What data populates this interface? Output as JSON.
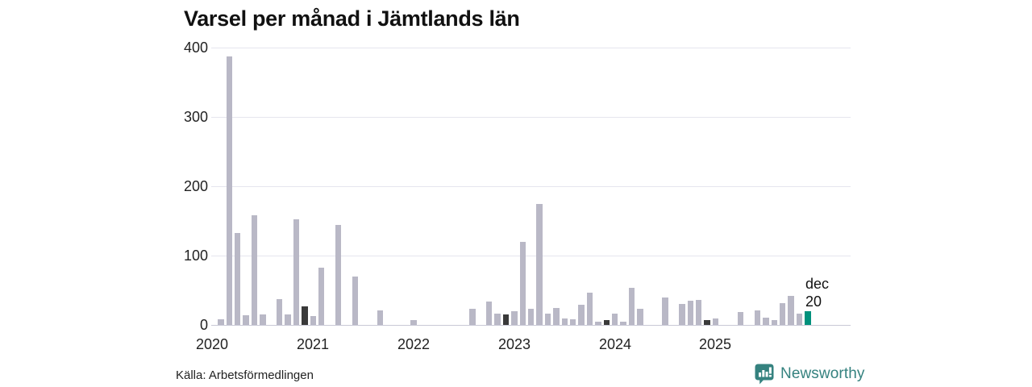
{
  "title": "Varsel per månad i Jämtlands län",
  "source": "Källa: Arbetsförmedlingen",
  "branding": {
    "name": "Newsworthy",
    "icon": "newsworthy-logo-icon",
    "color": "#35827f"
  },
  "annotation": {
    "line1": "dec",
    "line2": "20"
  },
  "colors": {
    "bar": "#b9b8c6",
    "dark": "#3a3a3a",
    "highlight": "#00917c",
    "grid": "#e5e5ee",
    "axis": "#c9c9d6",
    "text": "#222222",
    "title": "#111111"
  },
  "chart_data": {
    "type": "bar",
    "title": "Varsel per månad i Jämtlands län",
    "xlabel": "",
    "ylabel": "",
    "ylim": [
      0,
      400
    ],
    "grid": "horizontal",
    "legend": "none",
    "y_tick_labels": [
      "0",
      "100",
      "200",
      "300",
      "400"
    ],
    "x_tick_labels": [
      "2020",
      "2021",
      "2022",
      "2023",
      "2024",
      "2025"
    ],
    "months": [
      "2020-01",
      "2020-02",
      "2020-03",
      "2020-04",
      "2020-05",
      "2020-06",
      "2020-07",
      "2020-08",
      "2020-09",
      "2020-10",
      "2020-11",
      "2020-12",
      "2021-01",
      "2021-02",
      "2021-03",
      "2021-04",
      "2021-05",
      "2021-06",
      "2021-07",
      "2021-08",
      "2021-09",
      "2021-10",
      "2021-11",
      "2021-12",
      "2022-01",
      "2022-02",
      "2022-03",
      "2022-04",
      "2022-05",
      "2022-06",
      "2022-07",
      "2022-08",
      "2022-09",
      "2022-10",
      "2022-11",
      "2022-12",
      "2023-01",
      "2023-02",
      "2023-03",
      "2023-04",
      "2023-05",
      "2023-06",
      "2023-07",
      "2023-08",
      "2023-09",
      "2023-10",
      "2023-11",
      "2023-12",
      "2024-01",
      "2024-02",
      "2024-03",
      "2024-04",
      "2024-05",
      "2024-06",
      "2024-07",
      "2024-08",
      "2024-09",
      "2024-10",
      "2024-11",
      "2024-12",
      "2025-01",
      "2025-02",
      "2025-03",
      "2025-04",
      "2025-05",
      "2025-06",
      "2025-07",
      "2025-08",
      "2025-09",
      "2025-10",
      "2025-11",
      "2025-12"
    ],
    "values": [
      0,
      8,
      387,
      133,
      14,
      158,
      15,
      0,
      37,
      15,
      152,
      27,
      13,
      83,
      0,
      144,
      0,
      70,
      0,
      0,
      21,
      0,
      0,
      0,
      7,
      0,
      0,
      0,
      0,
      0,
      0,
      23,
      0,
      34,
      16,
      15,
      20,
      120,
      23,
      174,
      16,
      24,
      9,
      8,
      29,
      47,
      5,
      7,
      16,
      5,
      53,
      23,
      0,
      0,
      40,
      0,
      30,
      35,
      36,
      7,
      9,
      0,
      0,
      19,
      0,
      21,
      11,
      7,
      32,
      42,
      16,
      20
    ],
    "dark_indices": [
      11,
      35,
      47,
      59
    ],
    "highlight_index": 71,
    "annotation": {
      "text": "dec 20",
      "month": "2025-12",
      "value": 20
    }
  }
}
